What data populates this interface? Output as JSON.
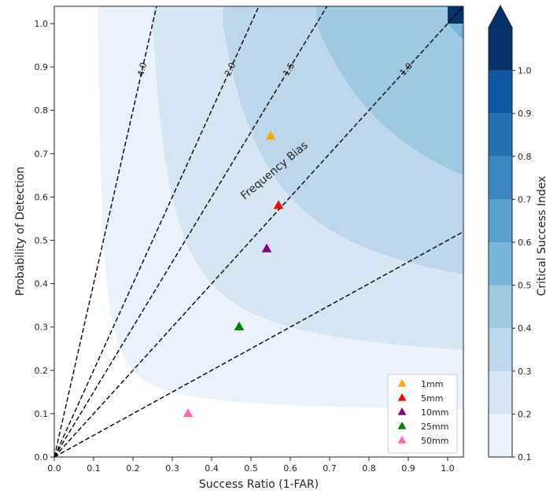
{
  "chart_data": {
    "type": "performance-diagram",
    "xlabel": "Success Ratio (1-FAR)",
    "ylabel": "Probability of Detection",
    "xlim": [
      0.0,
      1.04
    ],
    "ylim": [
      0.0,
      1.04
    ],
    "xticks": [
      "0.0",
      "0.1",
      "0.2",
      "0.3",
      "0.4",
      "0.5",
      "0.6",
      "0.7",
      "0.8",
      "0.9",
      "1.0"
    ],
    "yticks": [
      "0.0",
      "0.1",
      "0.2",
      "0.3",
      "0.4",
      "0.5",
      "0.6",
      "0.7",
      "0.8",
      "0.9",
      "1.0"
    ],
    "grid": false,
    "csi_contours": {
      "levels": [
        0.1,
        0.2,
        0.3,
        0.4,
        0.5,
        0.6,
        0.7,
        0.8,
        0.9,
        1.0
      ],
      "colors": [
        "#eaf2fb",
        "#d6e6f4",
        "#bcd7eb",
        "#9dc9e1",
        "#7ab6d9",
        "#58a1cf",
        "#3a87c1",
        "#2470b3",
        "#1058a3",
        "#08326b"
      ],
      "colorbar_label": "Critical Success Index",
      "colorbar_ticks": [
        "0.1",
        "0.2",
        "0.3",
        "0.4",
        "0.5",
        "0.6",
        "0.7",
        "0.8",
        "0.9",
        "1.0"
      ]
    },
    "bias_lines": [
      {
        "bias": 4.0,
        "label": "4.0"
      },
      {
        "bias": 2.0,
        "label": "2.0"
      },
      {
        "bias": 1.5,
        "label": "1.5"
      },
      {
        "bias": 1.0,
        "label": "1.0"
      },
      {
        "bias": 0.5,
        "label": ""
      }
    ],
    "bias_title": "Frequency Bias",
    "series": [
      {
        "name": "1mm",
        "x": 0.55,
        "y": 0.74,
        "color": "#ffa500"
      },
      {
        "name": "5mm",
        "x": 0.57,
        "y": 0.58,
        "color": "#ff0000"
      },
      {
        "name": "10mm",
        "x": 0.54,
        "y": 0.48,
        "color": "#800080"
      },
      {
        "name": "25mm",
        "x": 0.47,
        "y": 0.3,
        "color": "#008000"
      },
      {
        "name": "50mm",
        "x": 0.34,
        "y": 0.1,
        "color": "#ff69b4"
      }
    ],
    "legend": {
      "placement": "bottom-right"
    }
  }
}
